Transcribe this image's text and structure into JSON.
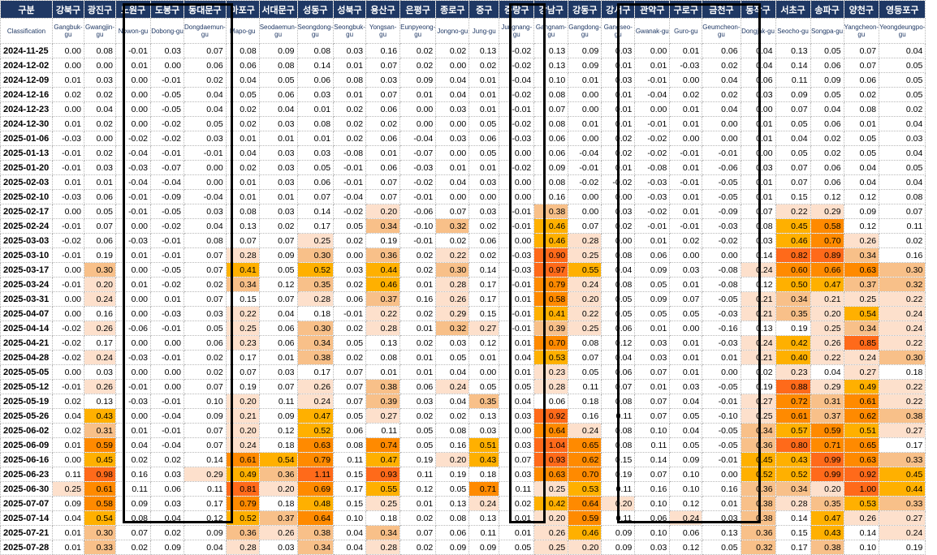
{
  "table": {
    "header_kr": [
      "구분",
      "강북구",
      "광진구",
      "노원구",
      "도봉구",
      "동대문구",
      "마포구",
      "서대문구",
      "성동구",
      "성북구",
      "용산구",
      "은평구",
      "종로구",
      "중구",
      "중랑구",
      "강남구",
      "강동구",
      "강서구",
      "관악구",
      "구로구",
      "금천구",
      "동작구",
      "서초구",
      "송파구",
      "양천구",
      "영등포구"
    ],
    "header_en": [
      "Classification",
      "Gangbuk-gu",
      "Gwangjin-gu",
      "Nowon-gu",
      "Dobong-gu",
      "Dongdaemun-gu",
      "Mapo-gu",
      "Seodaemun-gu",
      "Seongdong-gu",
      "Seongbuk-gu",
      "Yongsan-gu",
      "Eunpyeong-gu",
      "Jongno-gu",
      "Jung-gu",
      "Jungnang-gu",
      "Gangnam-gu",
      "Gangdong-gu",
      "Gangseo-gu",
      "Gwanak-gu",
      "Guro-gu",
      "Geumcheon-gu",
      "Dongjak-gu",
      "Seocho-gu",
      "Songpa-gu",
      "Yangcheon-gu",
      "Yeongdeungpo-gu"
    ],
    "rows": [
      [
        "2024-11-25",
        "0.00",
        "0.08",
        "-0.01",
        "0.03",
        "0.07",
        "0.08",
        "0.09",
        "0.08",
        "0.03",
        "0.16",
        "0.02",
        "0.02",
        "0.13",
        "-0.02",
        "0.13",
        "0.09",
        "0.03",
        "0.00",
        "0.01",
        "0.06",
        "0.04",
        "0.13",
        "0.05",
        "0.07",
        "0.04"
      ],
      [
        "2024-12-02",
        "0.00",
        "0.00",
        "0.01",
        "0.00",
        "0.06",
        "0.06",
        "0.08",
        "0.14",
        "0.01",
        "0.07",
        "0.02",
        "0.00",
        "0.02",
        "-0.02",
        "0.13",
        "0.09",
        "0.01",
        "0.01",
        "-0.03",
        "0.02",
        "0.04",
        "0.14",
        "0.06",
        "0.07",
        "0.05"
      ],
      [
        "2024-12-09",
        "0.01",
        "0.03",
        "0.00",
        "-0.01",
        "0.02",
        "0.04",
        "0.05",
        "0.06",
        "0.08",
        "0.03",
        "0.09",
        "0.04",
        "0.01",
        "-0.04",
        "0.10",
        "0.01",
        "0.03",
        "-0.01",
        "0.00",
        "0.04",
        "0.06",
        "0.11",
        "0.09",
        "0.06",
        "0.05"
      ],
      [
        "2024-12-16",
        "0.02",
        "0.02",
        "0.00",
        "-0.05",
        "0.04",
        "0.05",
        "0.06",
        "0.03",
        "0.01",
        "0.07",
        "0.01",
        "0.04",
        "0.01",
        "-0.02",
        "0.08",
        "0.00",
        "0.01",
        "-0.04",
        "0.02",
        "0.02",
        "0.03",
        "0.09",
        "0.05",
        "0.02",
        "0.05"
      ],
      [
        "2024-12-23",
        "0.00",
        "0.04",
        "0.00",
        "-0.05",
        "0.04",
        "0.02",
        "0.04",
        "0.01",
        "0.02",
        "0.06",
        "0.00",
        "0.03",
        "0.01",
        "-0.01",
        "0.07",
        "0.00",
        "0.01",
        "0.00",
        "0.01",
        "0.04",
        "0.00",
        "0.07",
        "0.04",
        "0.08",
        "0.02"
      ],
      [
        "2024-12-30",
        "0.01",
        "0.02",
        "0.00",
        "-0.02",
        "0.05",
        "0.02",
        "0.03",
        "0.08",
        "0.02",
        "0.02",
        "0.00",
        "0.00",
        "0.05",
        "-0.02",
        "0.08",
        "0.01",
        "0.01",
        "-0.01",
        "0.01",
        "0.00",
        "0.01",
        "0.05",
        "0.06",
        "0.01",
        "0.04"
      ],
      [
        "2025-01-06",
        "-0.03",
        "0.00",
        "-0.02",
        "-0.02",
        "0.03",
        "0.01",
        "0.01",
        "0.01",
        "0.02",
        "0.06",
        "-0.04",
        "0.03",
        "0.06",
        "-0.03",
        "0.06",
        "0.00",
        "0.02",
        "-0.02",
        "0.00",
        "0.00",
        "0.01",
        "0.04",
        "0.02",
        "0.05",
        "0.03"
      ],
      [
        "2025-01-13",
        "-0.01",
        "0.02",
        "-0.04",
        "-0.01",
        "-0.01",
        "0.04",
        "0.03",
        "0.03",
        "-0.08",
        "0.01",
        "-0.07",
        "0.00",
        "0.05",
        "0.00",
        "0.06",
        "-0.04",
        "0.02",
        "-0.02",
        "-0.01",
        "-0.01",
        "0.00",
        "0.05",
        "0.02",
        "0.05",
        "0.04"
      ],
      [
        "2025-01-20",
        "-0.01",
        "0.03",
        "-0.03",
        "-0.07",
        "0.00",
        "0.02",
        "0.03",
        "0.05",
        "-0.01",
        "0.06",
        "-0.03",
        "0.01",
        "0.01",
        "-0.02",
        "0.09",
        "-0.01",
        "0.01",
        "-0.08",
        "0.01",
        "-0.06",
        "0.03",
        "0.07",
        "0.06",
        "0.04",
        "0.05"
      ],
      [
        "2025-02-03",
        "0.01",
        "0.01",
        "-0.04",
        "-0.04",
        "0.00",
        "0.01",
        "0.03",
        "0.06",
        "-0.01",
        "0.07",
        "-0.02",
        "0.04",
        "0.03",
        "0.00",
        "0.08",
        "-0.02",
        "-0.02",
        "-0.03",
        "-0.01",
        "-0.05",
        "0.01",
        "0.07",
        "0.06",
        "0.04",
        "0.04"
      ],
      [
        "2025-02-10",
        "-0.03",
        "0.06",
        "-0.01",
        "-0.09",
        "-0.04",
        "0.01",
        "0.01",
        "0.07",
        "-0.04",
        "0.07",
        "-0.01",
        "0.00",
        "0.00",
        "0.00",
        "0.16",
        "0.00",
        "0.00",
        "-0.03",
        "0.01",
        "-0.05",
        "0.01",
        "0.15",
        "0.12",
        "0.12",
        "0.08"
      ],
      [
        "2025-02-17",
        "0.00",
        "0.05",
        "-0.01",
        "-0.05",
        "0.03",
        "0.08",
        "0.03",
        "0.14",
        "-0.02",
        "0.20",
        "-0.06",
        "0.07",
        "0.03",
        "-0.01",
        "0.38",
        "0.00",
        "0.03",
        "-0.02",
        "0.01",
        "-0.09",
        "0.07",
        "0.22",
        "0.29",
        "0.09",
        "0.07"
      ],
      [
        "2025-02-24",
        "-0.01",
        "0.07",
        "0.00",
        "-0.02",
        "0.04",
        "0.13",
        "0.02",
        "0.17",
        "0.05",
        "0.34",
        "-0.10",
        "0.32",
        "0.02",
        "-0.01",
        "0.46",
        "0.07",
        "0.02",
        "-0.01",
        "-0.01",
        "-0.03",
        "0.08",
        "0.45",
        "0.58",
        "0.12",
        "0.11"
      ],
      [
        "2025-03-03",
        "-0.02",
        "0.06",
        "-0.03",
        "-0.01",
        "0.08",
        "0.07",
        "0.07",
        "0.25",
        "0.02",
        "0.19",
        "-0.01",
        "0.02",
        "0.06",
        "0.00",
        "0.46",
        "0.28",
        "0.00",
        "0.01",
        "0.02",
        "-0.02",
        "0.03",
        "0.46",
        "0.70",
        "0.26",
        "0.02"
      ],
      [
        "2025-03-10",
        "-0.01",
        "0.19",
        "0.01",
        "-0.01",
        "0.07",
        "0.28",
        "0.09",
        "0.30",
        "0.00",
        "0.36",
        "0.02",
        "0.22",
        "0.02",
        "-0.03",
        "0.90",
        "0.25",
        "0.08",
        "0.06",
        "0.00",
        "0.00",
        "0.14",
        "0.82",
        "0.89",
        "0.34",
        "0.16"
      ],
      [
        "2025-03-17",
        "0.00",
        "0.30",
        "0.00",
        "-0.05",
        "0.07",
        "0.41",
        "0.05",
        "0.52",
        "0.03",
        "0.44",
        "0.02",
        "0.30",
        "0.14",
        "-0.03",
        "0.97",
        "0.55",
        "0.04",
        "0.09",
        "0.03",
        "-0.08",
        "0.24",
        "0.60",
        "0.66",
        "0.63",
        "0.30"
      ],
      [
        "2025-03-24",
        "-0.01",
        "0.20",
        "0.01",
        "-0.02",
        "0.02",
        "0.34",
        "0.12",
        "0.35",
        "0.02",
        "0.46",
        "0.01",
        "0.28",
        "0.17",
        "-0.01",
        "0.79",
        "0.24",
        "0.08",
        "0.05",
        "0.01",
        "-0.08",
        "0.12",
        "0.50",
        "0.47",
        "0.37",
        "0.32"
      ],
      [
        "2025-03-31",
        "0.00",
        "0.24",
        "0.00",
        "0.01",
        "0.07",
        "0.15",
        "0.07",
        "0.28",
        "0.06",
        "0.37",
        "0.16",
        "0.26",
        "0.17",
        "0.01",
        "0.58",
        "0.20",
        "0.05",
        "0.09",
        "0.07",
        "-0.05",
        "0.21",
        "0.34",
        "0.21",
        "0.25",
        "0.22"
      ],
      [
        "2025-04-07",
        "0.00",
        "0.16",
        "0.00",
        "-0.03",
        "0.03",
        "0.22",
        "0.04",
        "0.18",
        "-0.01",
        "0.22",
        "0.02",
        "0.29",
        "0.15",
        "-0.01",
        "0.41",
        "0.22",
        "0.05",
        "0.05",
        "0.05",
        "-0.03",
        "0.21",
        "0.35",
        "0.20",
        "0.54",
        "0.24"
      ],
      [
        "2025-04-14",
        "-0.02",
        "0.26",
        "-0.06",
        "-0.01",
        "0.05",
        "0.25",
        "0.06",
        "0.30",
        "0.02",
        "0.28",
        "0.01",
        "0.32",
        "0.27",
        "-0.01",
        "0.39",
        "0.25",
        "0.06",
        "0.01",
        "0.00",
        "-0.16",
        "0.13",
        "0.19",
        "0.25",
        "0.34",
        "0.24"
      ],
      [
        "2025-04-21",
        "-0.02",
        "0.17",
        "0.00",
        "0.00",
        "0.06",
        "0.23",
        "0.06",
        "0.34",
        "0.05",
        "0.13",
        "0.02",
        "0.03",
        "0.12",
        "0.01",
        "0.70",
        "0.08",
        "0.12",
        "0.03",
        "0.01",
        "-0.03",
        "0.24",
        "0.42",
        "0.26",
        "0.85",
        "0.22"
      ],
      [
        "2025-04-28",
        "-0.02",
        "0.24",
        "-0.03",
        "-0.01",
        "0.02",
        "0.17",
        "0.01",
        "0.38",
        "0.02",
        "0.08",
        "0.01",
        "0.05",
        "0.01",
        "0.04",
        "0.53",
        "0.07",
        "0.04",
        "0.03",
        "0.01",
        "0.01",
        "0.21",
        "0.40",
        "0.22",
        "0.24",
        "0.30"
      ],
      [
        "2025-05-05",
        "0.00",
        "0.03",
        "0.00",
        "0.00",
        "0.02",
        "0.07",
        "0.03",
        "0.17",
        "0.07",
        "0.01",
        "0.01",
        "0.04",
        "0.00",
        "0.01",
        "0.23",
        "0.05",
        "0.06",
        "0.07",
        "0.01",
        "0.00",
        "0.02",
        "0.23",
        "0.04",
        "0.27",
        "0.18"
      ],
      [
        "2025-05-12",
        "-0.01",
        "0.26",
        "-0.01",
        "0.00",
        "0.07",
        "0.19",
        "0.07",
        "0.26",
        "0.07",
        "0.38",
        "0.06",
        "0.24",
        "0.05",
        "0.05",
        "0.28",
        "0.11",
        "0.07",
        "0.01",
        "0.03",
        "-0.05",
        "0.19",
        "0.88",
        "0.29",
        "0.49",
        "0.22"
      ],
      [
        "2025-05-19",
        "0.02",
        "0.13",
        "-0.03",
        "-0.01",
        "0.10",
        "0.20",
        "0.11",
        "0.24",
        "0.07",
        "0.39",
        "0.03",
        "0.04",
        "0.35",
        "0.04",
        "0.06",
        "0.18",
        "0.08",
        "0.07",
        "0.04",
        "-0.01",
        "0.27",
        "0.72",
        "0.31",
        "0.61",
        "0.22"
      ],
      [
        "2025-05-26",
        "0.04",
        "0.43",
        "0.00",
        "-0.04",
        "0.09",
        "0.21",
        "0.09",
        "0.47",
        "0.05",
        "0.27",
        "0.02",
        "0.02",
        "0.13",
        "0.03",
        "0.92",
        "0.16",
        "0.11",
        "0.07",
        "0.05",
        "-0.10",
        "0.25",
        "0.61",
        "0.37",
        "0.62",
        "0.38"
      ],
      [
        "2025-06-02",
        "0.02",
        "0.31",
        "0.01",
        "-0.01",
        "0.07",
        "0.20",
        "0.12",
        "0.52",
        "0.06",
        "0.11",
        "0.05",
        "0.08",
        "0.03",
        "0.00",
        "0.64",
        "0.24",
        "0.08",
        "0.10",
        "0.04",
        "-0.05",
        "0.34",
        "0.57",
        "0.59",
        "0.51",
        "0.27"
      ],
      [
        "2025-06-09",
        "0.01",
        "0.59",
        "0.04",
        "-0.04",
        "0.07",
        "0.24",
        "0.18",
        "0.63",
        "0.08",
        "0.74",
        "0.05",
        "0.16",
        "0.51",
        "0.03",
        "1.04",
        "0.65",
        "0.08",
        "0.11",
        "0.05",
        "-0.05",
        "0.36",
        "0.80",
        "0.71",
        "0.65",
        "0.17"
      ],
      [
        "2025-06-16",
        "0.00",
        "0.45",
        "0.02",
        "0.02",
        "0.14",
        "0.61",
        "0.54",
        "0.79",
        "0.11",
        "0.47",
        "0.19",
        "0.20",
        "0.43",
        "0.07",
        "0.93",
        "0.62",
        "0.15",
        "0.14",
        "0.09",
        "-0.01",
        "0.45",
        "0.43",
        "0.99",
        "0.63",
        "0.33"
      ],
      [
        "2025-06-23",
        "0.11",
        "0.98",
        "0.16",
        "0.03",
        "0.29",
        "0.49",
        "0.36",
        "1.11",
        "0.15",
        "0.93",
        "0.11",
        "0.19",
        "0.18",
        "0.03",
        "0.63",
        "0.70",
        "0.19",
        "0.07",
        "0.10",
        "0.00",
        "0.52",
        "0.52",
        "0.99",
        "0.92",
        "0.45"
      ],
      [
        "2025-06-30",
        "0.25",
        "0.61",
        "0.11",
        "0.06",
        "0.11",
        "0.81",
        "0.20",
        "0.69",
        "0.17",
        "0.55",
        "0.12",
        "0.05",
        "0.71",
        "0.11",
        "0.25",
        "0.53",
        "0.11",
        "0.16",
        "0.10",
        "0.16",
        "0.36",
        "0.34",
        "0.20",
        "1.00",
        "0.44"
      ],
      [
        "2025-07-07",
        "0.09",
        "0.58",
        "0.09",
        "0.03",
        "0.17",
        "0.79",
        "0.18",
        "0.48",
        "0.15",
        "0.25",
        "0.01",
        "0.13",
        "0.24",
        "0.02",
        "0.42",
        "0.64",
        "0.20",
        "0.10",
        "0.12",
        "0.01",
        "0.38",
        "0.28",
        "0.35",
        "0.53",
        "0.33"
      ],
      [
        "2025-07-14",
        "0.04",
        "0.54",
        "0.08",
        "0.04",
        "0.12",
        "0.52",
        "0.37",
        "0.64",
        "0.10",
        "0.18",
        "0.02",
        "0.08",
        "0.13",
        "0.01",
        "0.20",
        "0.59",
        "0.11",
        "0.06",
        "0.24",
        "0.03",
        "0.38",
        "0.14",
        "0.47",
        "0.26",
        "0.27"
      ],
      [
        "2025-07-21",
        "0.01",
        "0.30",
        "0.07",
        "0.02",
        "0.09",
        "0.36",
        "0.26",
        "0.38",
        "0.04",
        "0.34",
        "0.07",
        "0.06",
        "0.11",
        "0.01",
        "0.26",
        "0.46",
        "0.09",
        "0.10",
        "0.06",
        "0.13",
        "0.36",
        "0.15",
        "0.43",
        "0.14",
        "0.24"
      ],
      [
        "2025-07-28",
        "0.01",
        "0.33",
        "0.02",
        "0.09",
        "0.04",
        "0.28",
        "0.03",
        "0.34",
        "0.04",
        "0.28",
        "0.02",
        "0.09",
        "0.09",
        "0.05",
        "0.25",
        "0.20",
        "0.09",
        "0.03",
        "0.12",
        "0.05",
        "0.32",
        "0.17",
        "0.38",
        "0.10",
        "0.19"
      ]
    ]
  },
  "colors": {
    "header_bg": "#1f3864",
    "header_text": "#ffffff",
    "sub_header_text": "#1f3864",
    "scale_low": "#fde0cc",
    "scale_mid": "#f8c089",
    "scale_high": "#ffb000",
    "scale_max": "#ff8a00",
    "scale_peak": "#ff6a1a",
    "box_border": "#000000"
  }
}
